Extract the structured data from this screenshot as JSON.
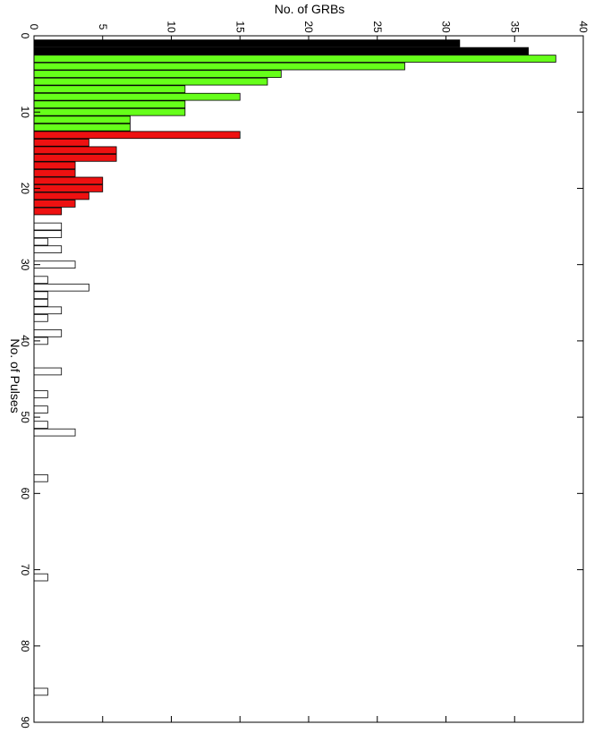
{
  "chart_data": {
    "type": "bar",
    "orientation": "horizontal",
    "xlabel": "No. of GRBs",
    "ylabel": "No. of Pulses",
    "xlim": [
      0,
      40
    ],
    "ylim": [
      0,
      90
    ],
    "x_ticks": [
      0,
      5,
      10,
      15,
      20,
      25,
      30,
      35,
      40
    ],
    "y_ticks": [
      0,
      10,
      20,
      30,
      40,
      50,
      60,
      70,
      80,
      90
    ],
    "x_axis_position": "top",
    "y_axis_position": "left",
    "y_inverted": true,
    "grid": false,
    "legend": "none",
    "colors": {
      "group1": "#000000",
      "group2": "#66ff1a",
      "group3": "#ee1111",
      "group4": "#ffffff"
    },
    "series": [
      {
        "color_key": "group1",
        "categories": [
          1,
          2
        ],
        "values": [
          31,
          36
        ]
      },
      {
        "color_key": "group2",
        "categories": [
          3,
          4,
          5,
          6,
          7,
          8,
          9,
          10,
          11,
          12
        ],
        "values": [
          38,
          27,
          18,
          17,
          11,
          15,
          11,
          11,
          7,
          7
        ]
      },
      {
        "color_key": "group3",
        "categories": [
          13,
          14,
          15,
          16,
          17,
          18,
          19,
          20,
          21,
          22,
          23
        ],
        "values": [
          15,
          4,
          6,
          6,
          3,
          3,
          5,
          5,
          4,
          3,
          2
        ]
      },
      {
        "color_key": "group4",
        "categories": [
          25,
          26,
          27,
          28,
          30,
          32,
          33,
          34,
          35,
          36,
          37,
          39,
          40,
          44,
          47,
          49,
          51,
          52,
          58,
          71,
          86
        ],
        "values": [
          2,
          2,
          1,
          2,
          3,
          1,
          4,
          1,
          1,
          2,
          1,
          2,
          1,
          2,
          1,
          1,
          1,
          3,
          1,
          1,
          1
        ]
      }
    ]
  }
}
